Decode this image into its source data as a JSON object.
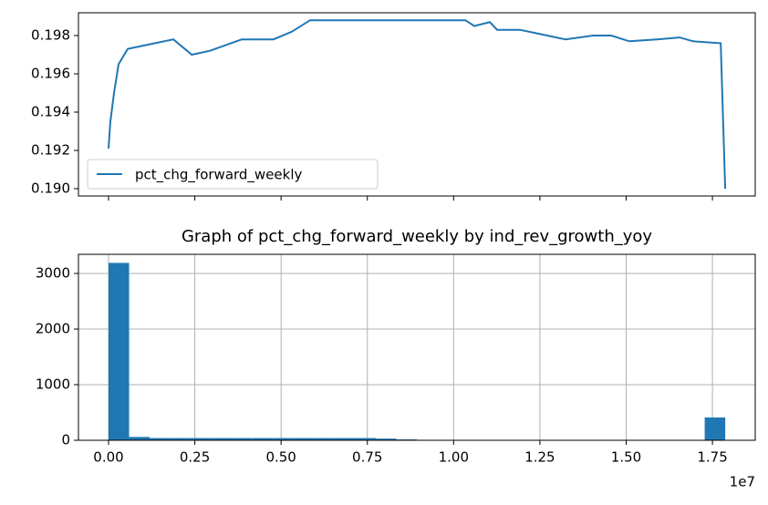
{
  "chart_data": [
    {
      "type": "line",
      "x": [
        0,
        53000,
        159000,
        291000,
        555000,
        1080000,
        1880000,
        2410000,
        2930000,
        3860000,
        4780000,
        5310000,
        5840000,
        10340000,
        10600000,
        11050000,
        11260000,
        11920000,
        12450000,
        13240000,
        14040000,
        14570000,
        15090000,
        15890000,
        16550000,
        16940000,
        17740000,
        17870000
      ],
      "series": [
        {
          "name": "pct_chg_forward_weekly",
          "color": "#1f77b4",
          "values": [
            0.1921,
            0.1935,
            0.195,
            0.1965,
            0.1973,
            0.1975,
            0.1978,
            0.197,
            0.1972,
            0.1978,
            0.1978,
            0.1982,
            0.1988,
            0.1988,
            0.1985,
            0.1987,
            0.1983,
            0.1983,
            0.1981,
            0.1978,
            0.198,
            0.198,
            0.1977,
            0.1978,
            0.1979,
            0.1977,
            0.1976,
            0.19
          ]
        }
      ],
      "ylim": [
        0.18962,
        0.19919
      ],
      "yticks": [
        {
          "value": 0.19,
          "label": "0.190"
        },
        {
          "value": 0.192,
          "label": "0.192"
        },
        {
          "value": 0.194,
          "label": "0.194"
        },
        {
          "value": 0.196,
          "label": "0.196"
        },
        {
          "value": 0.198,
          "label": "0.198"
        }
      ],
      "legend": "lower left",
      "grid": false
    },
    {
      "type": "histogram",
      "title": "Graph of pct_chg_forward_weekly by ind_rev_growth_yoy",
      "bins": [
        0,
        595700,
        1191400,
        1787100,
        2382800,
        2978500,
        3574200,
        4169900,
        4765600,
        5361300,
        5957000,
        6552700,
        7148400,
        7744100,
        8339800,
        8935500,
        9531200,
        10126900,
        10722600,
        11318300,
        11914000,
        12509700,
        13105400,
        13701100,
        14296800,
        14892500,
        15488200,
        16083900,
        16679600,
        17275300,
        17871000
      ],
      "values": [
        3190,
        60,
        40,
        40,
        40,
        40,
        40,
        40,
        40,
        40,
        40,
        40,
        40,
        30,
        15,
        0,
        0,
        0,
        0,
        0,
        0,
        0,
        0,
        0,
        0,
        0,
        0,
        0,
        0,
        410
      ],
      "color": "#1f77b4",
      "xlim": [
        -872000,
        18740000
      ],
      "xticks": [
        {
          "value": 0,
          "label": "0.00"
        },
        {
          "value": 2500000,
          "label": "0.25"
        },
        {
          "value": 5000000,
          "label": "0.50"
        },
        {
          "value": 7500000,
          "label": "0.75"
        },
        {
          "value": 10000000,
          "label": "1.00"
        },
        {
          "value": 12500000,
          "label": "1.25"
        },
        {
          "value": 15000000,
          "label": "1.50"
        },
        {
          "value": 17500000,
          "label": "1.75"
        }
      ],
      "x_offset_label": "1e7",
      "ylim": [
        0,
        3344
      ],
      "yticks": [
        0,
        1000,
        2000,
        3000
      ],
      "grid": true
    }
  ]
}
